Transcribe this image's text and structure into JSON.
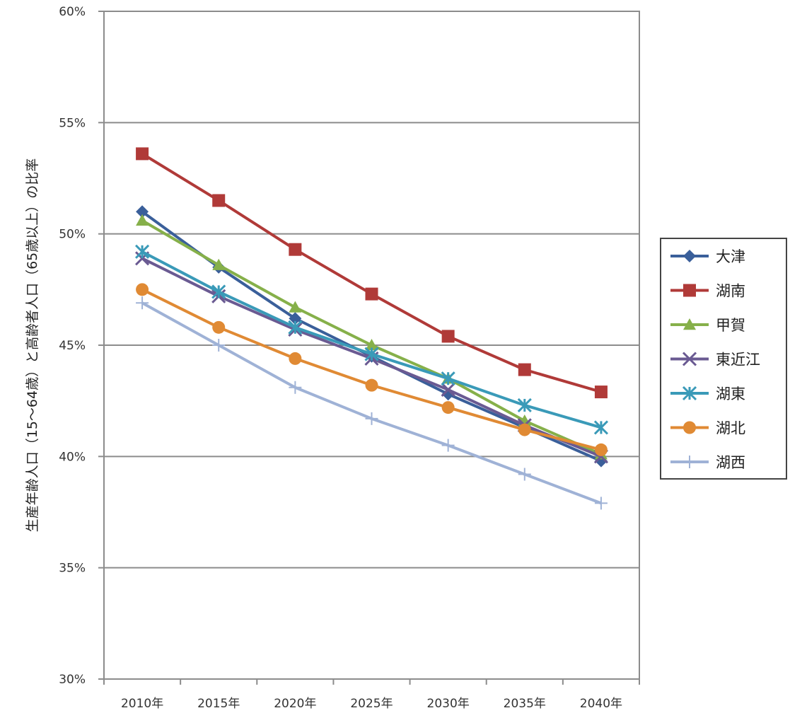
{
  "chart_data": {
    "type": "line",
    "categories": [
      "2010年",
      "2015年",
      "2020年",
      "2025年",
      "2030年",
      "2035年",
      "2040年"
    ],
    "ylabel": "生産年齢人口（15～64歳）と高齢者人口（65歳以上）の比率",
    "ylim": [
      30,
      60
    ],
    "yticks": [
      30,
      35,
      40,
      45,
      50,
      55,
      60
    ],
    "ytick_labels": [
      "30%",
      "35%",
      "40%",
      "45%",
      "50%",
      "55%",
      "60%"
    ],
    "grid": true,
    "legend_position": "right",
    "series": [
      {
        "name": "大津",
        "color": "#3a5f9a",
        "marker": "diamond",
        "values": [
          51.0,
          48.5,
          46.2,
          44.5,
          42.8,
          41.3,
          39.8
        ]
      },
      {
        "name": "湖南",
        "color": "#b03a38",
        "marker": "square",
        "values": [
          53.6,
          51.5,
          49.3,
          47.3,
          45.4,
          43.9,
          42.9
        ]
      },
      {
        "name": "甲賀",
        "color": "#86b04a",
        "marker": "triangle",
        "values": [
          50.6,
          48.6,
          46.7,
          45.0,
          43.5,
          41.6,
          40.1
        ]
      },
      {
        "name": "東近江",
        "color": "#6a5a92",
        "marker": "x",
        "values": [
          48.9,
          47.2,
          45.7,
          44.4,
          43.0,
          41.4,
          40.0
        ]
      },
      {
        "name": "湖東",
        "color": "#3a9ab8",
        "marker": "star",
        "values": [
          49.2,
          47.4,
          45.8,
          44.6,
          43.5,
          42.3,
          41.3
        ]
      },
      {
        "name": "湖北",
        "color": "#e08a34",
        "marker": "circle",
        "values": [
          47.5,
          45.8,
          44.4,
          43.2,
          42.2,
          41.2,
          40.3
        ]
      },
      {
        "name": "湖西",
        "color": "#9fb2d6",
        "marker": "plus",
        "values": [
          46.9,
          45.0,
          43.1,
          41.7,
          40.5,
          39.2,
          37.9
        ]
      }
    ]
  }
}
